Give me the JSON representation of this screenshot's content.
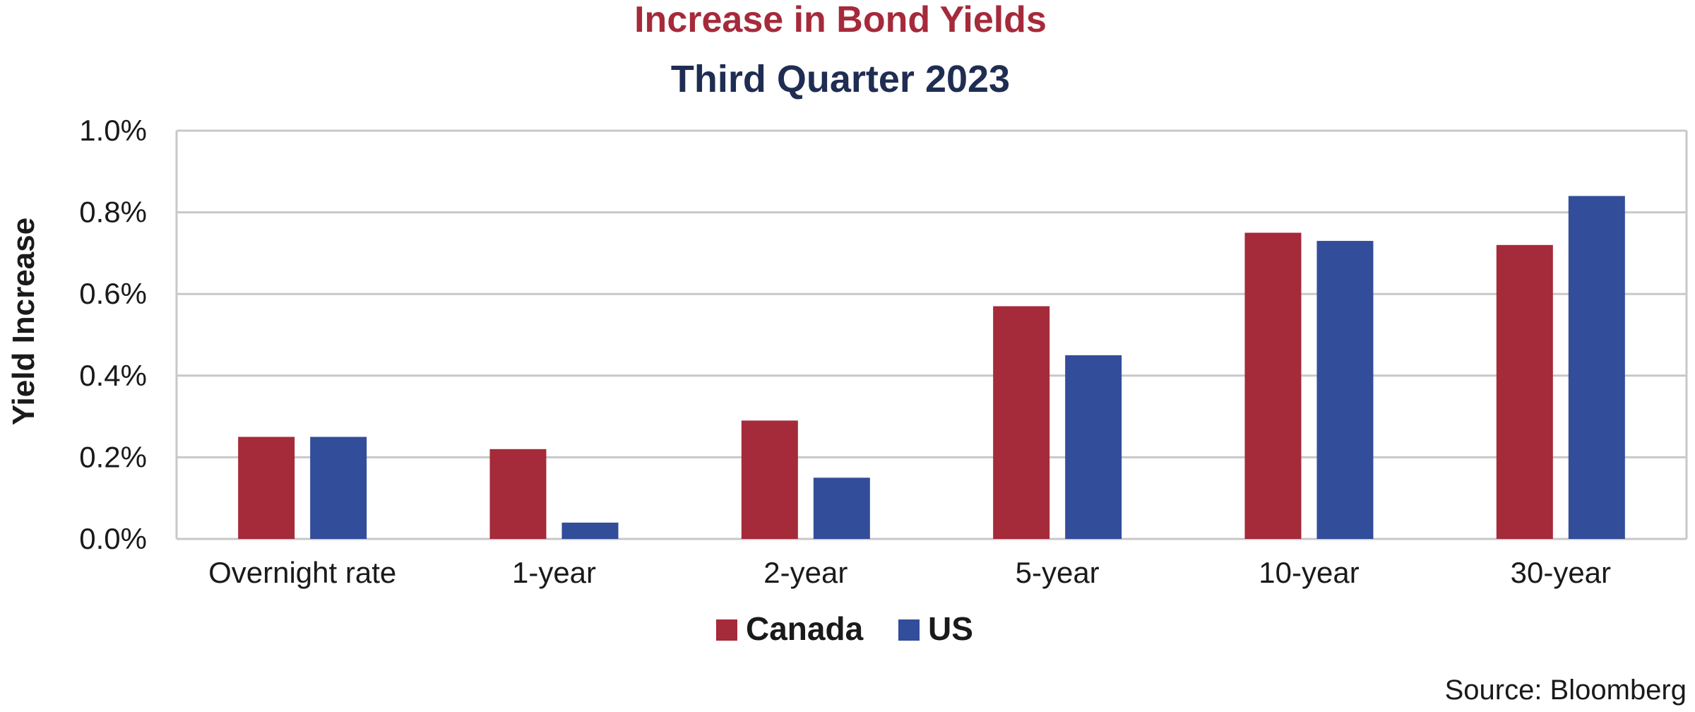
{
  "chart_data": {
    "type": "bar",
    "title": "Increase in Bond Yields",
    "subtitle": "Third Quarter 2023",
    "xlabel": "",
    "ylabel": "Yield Increase",
    "categories": [
      "Overnight rate",
      "1-year",
      "2-year",
      "5-year",
      "10-year",
      "30-year"
    ],
    "series": [
      {
        "name": "Canada",
        "color": "#a52a3a",
        "values": [
          0.25,
          0.22,
          0.29,
          0.57,
          0.75,
          0.72
        ]
      },
      {
        "name": "US",
        "color": "#324d99",
        "values": [
          0.25,
          0.04,
          0.15,
          0.45,
          0.73,
          0.84
        ]
      }
    ],
    "ylim": [
      0,
      1.0
    ],
    "yticks": [
      "0.0%",
      "0.2%",
      "0.4%",
      "0.6%",
      "0.8%",
      "1.0%"
    ],
    "ytick_values": [
      0,
      0.2,
      0.4,
      0.6,
      0.8,
      1.0
    ],
    "grid": true,
    "legend_position": "bottom-center",
    "source": "Source: Bloomberg",
    "colors": {
      "title": "#a52a3a",
      "subtitle": "#1f2d52",
      "grid": "#c8c8c8"
    }
  }
}
